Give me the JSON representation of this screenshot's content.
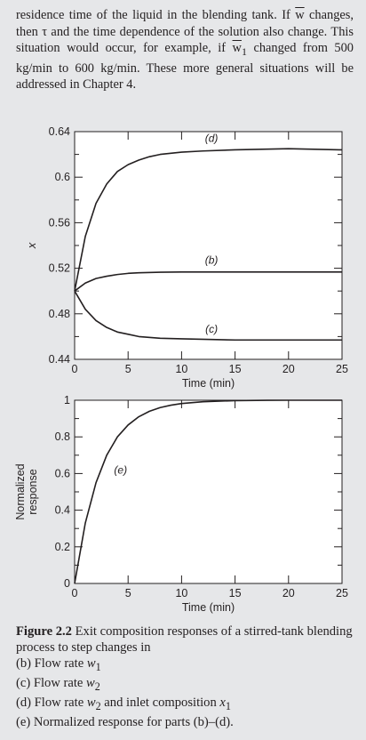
{
  "intro": {
    "l1": "residence time of the liquid in the blending tank. If ",
    "l1_w": "w",
    "l2": "changes, then τ and the time dependence of the solution also change. This situation would occur, for example, if ",
    "l2_w": "w",
    "l2_sub": "1",
    "l3": " changed from 500 kg/min to 600 kg/min. These more general situations will be addressed in Chapter 4."
  },
  "chart_data": [
    {
      "type": "line",
      "xlabel": "Time (min)",
      "ylabel": "x",
      "xlim": [
        0,
        25
      ],
      "ylim": [
        0.44,
        0.64
      ],
      "xticks": [
        "0",
        "5",
        "10",
        "15",
        "20",
        "25"
      ],
      "yticks": [
        "0.44",
        "0.48",
        "0.52",
        "0.56",
        "0.6",
        "0.64"
      ],
      "grid": false,
      "series": [
        {
          "name": "(d)",
          "x": [
            0,
            1,
            2,
            3,
            4,
            5,
            6,
            7,
            8,
            10,
            12,
            15,
            20,
            25
          ],
          "y": [
            0.5,
            0.548,
            0.577,
            0.594,
            0.605,
            0.611,
            0.615,
            0.618,
            0.62,
            0.622,
            0.623,
            0.624,
            0.625,
            0.624
          ]
        },
        {
          "name": "(b)",
          "x": [
            0,
            1,
            2,
            3,
            4,
            5,
            6,
            8,
            10,
            15,
            20,
            25
          ],
          "y": [
            0.5,
            0.507,
            0.511,
            0.513,
            0.5145,
            0.5155,
            0.516,
            0.5165,
            0.5167,
            0.5167,
            0.5167,
            0.5167
          ]
        },
        {
          "name": "(c)",
          "x": [
            0,
            1,
            2,
            3,
            4,
            5,
            6,
            8,
            10,
            15,
            20,
            25
          ],
          "y": [
            0.5,
            0.484,
            0.474,
            0.468,
            0.464,
            0.462,
            0.46,
            0.4585,
            0.458,
            0.457,
            0.457,
            0.457
          ]
        }
      ]
    },
    {
      "type": "line",
      "xlabel": "Time (min)",
      "ylabel": "Normalized response",
      "xlim": [
        0,
        25
      ],
      "ylim": [
        0,
        1
      ],
      "xticks": [
        "0",
        "5",
        "10",
        "15",
        "20",
        "25"
      ],
      "yticks": [
        "0",
        "0.2",
        "0.4",
        "0.6",
        "0.8",
        "1"
      ],
      "grid": false,
      "series": [
        {
          "name": "(e)",
          "x": [
            0,
            1,
            2,
            3,
            4,
            5,
            6,
            7,
            8,
            9,
            10,
            12,
            15,
            18,
            20,
            25
          ],
          "y": [
            0,
            0.33,
            0.55,
            0.7,
            0.8,
            0.865,
            0.91,
            0.94,
            0.96,
            0.973,
            0.982,
            0.992,
            0.998,
            0.9995,
            1.0,
            1.0
          ]
        }
      ]
    }
  ],
  "caption": {
    "label": "Figure 2.2",
    "title": " Exit composition responses of a stirred-tank blending process to step changes in",
    "items": [
      {
        "pre": "(b) Flow rate ",
        "var": "w",
        "sub": "1",
        "post": ""
      },
      {
        "pre": "(c) Flow rate ",
        "var": "w",
        "sub": "2",
        "post": ""
      },
      {
        "pre": "(d) Flow rate ",
        "var": "w",
        "sub": "2",
        "post": " and inlet composition ",
        "var2": "x",
        "sub2": "1"
      },
      {
        "pre": "(e) Normalized response for parts (b)–(d).",
        "var": "",
        "sub": "",
        "post": ""
      }
    ]
  }
}
